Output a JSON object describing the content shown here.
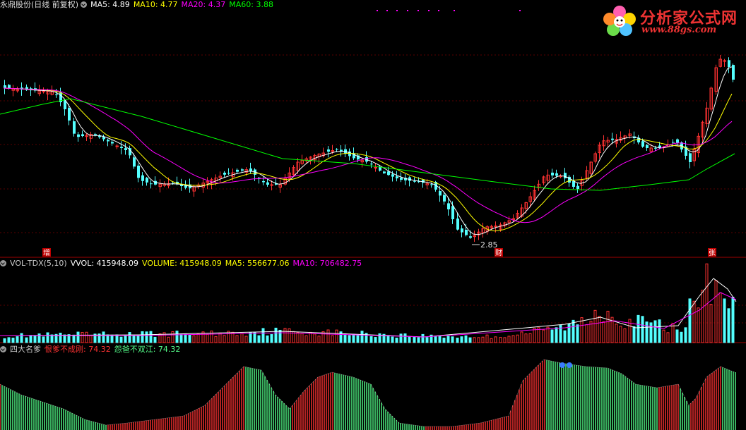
{
  "main": {
    "title": "永鼎股份(日线 前复权)",
    "ma5": "MA5: 4.89",
    "ma10": "MA10: 4.77",
    "ma20": "MA20: 4.37",
    "ma60": "MA60: 3.88",
    "low_label": "2.85",
    "markers": [
      "增",
      "财",
      "张"
    ]
  },
  "volume": {
    "title": "VOL-TDX(5,10)",
    "vvol": "VVOL: 415948.09",
    "volume": "VOLUME: 415948.09",
    "ma5": "MA5: 556677.06",
    "ma10": "MA10: 706482.75"
  },
  "indicator": {
    "title": "四大名爹",
    "line1": "恨爹不成刚: 74.32",
    "line2": "怨爸不双江: 74.32"
  },
  "logo": {
    "text": "分析家公式网",
    "url": "www.88gs.com"
  },
  "colors": {
    "up": "#ff3232",
    "down": "#54ffff",
    "ma5": "#ffffff",
    "ma10": "#ffff00",
    "ma20": "#ff00ff",
    "ma60": "#00ff00",
    "osc_up": "#ff3232",
    "osc_down": "#54ff8a"
  },
  "chart_data": [
    {
      "type": "candlestick",
      "title": "永鼎股份(日线 前复权)",
      "series": [
        {
          "name": "MA5",
          "last": 4.89
        },
        {
          "name": "MA10",
          "last": 4.77
        },
        {
          "name": "MA20",
          "last": 4.37
        },
        {
          "name": "MA60",
          "last": 3.88
        }
      ],
      "annotations": [
        "2.85"
      ]
    },
    {
      "type": "bar",
      "title": "VOL-TDX(5,10)",
      "series": [
        {
          "name": "VVOL",
          "last": 415948.09
        },
        {
          "name": "VOLUME",
          "last": 415948.09
        },
        {
          "name": "MA5",
          "last": 556677.06
        },
        {
          "name": "MA10",
          "last": 706482.75
        }
      ]
    },
    {
      "type": "bar",
      "title": "四大名爹",
      "series": [
        {
          "name": "恨爹不成刚",
          "last": 74.32
        },
        {
          "name": "怨爸不双江",
          "last": 74.32
        }
      ]
    }
  ]
}
